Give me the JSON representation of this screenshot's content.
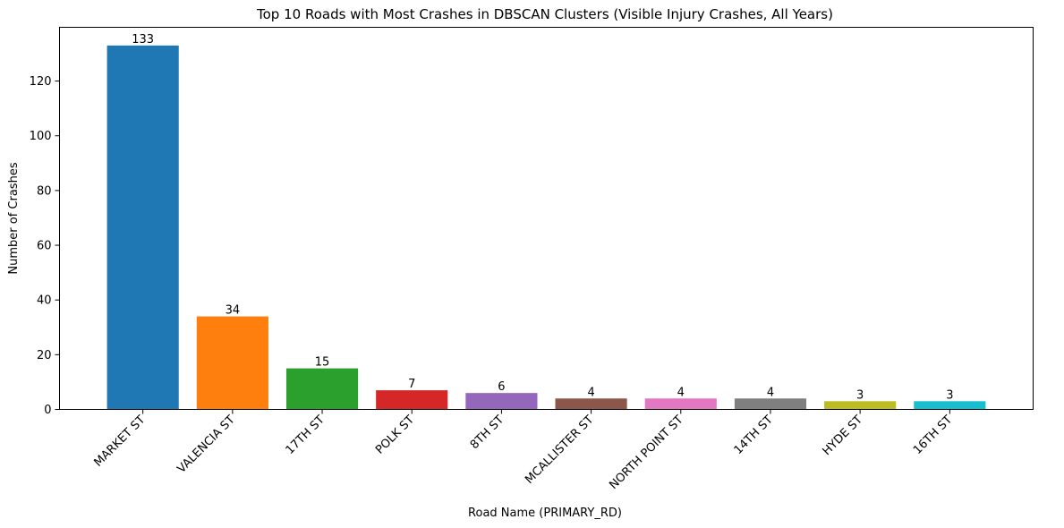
{
  "chart_data": {
    "type": "bar",
    "title": "Top 10 Roads with Most Crashes in DBSCAN Clusters (Visible Injury Crashes, All Years)",
    "xlabel": "Road Name (PRIMARY_RD)",
    "ylabel": "Number of Crashes",
    "categories": [
      "MARKET ST",
      "VALENCIA ST",
      "17TH ST",
      "POLK ST",
      "8TH ST",
      "MCALLISTER ST",
      "NORTH POINT ST",
      "14TH ST",
      "HYDE ST",
      "16TH ST"
    ],
    "values": [
      133,
      34,
      15,
      7,
      6,
      4,
      4,
      4,
      3,
      3
    ],
    "value_labels": [
      "133",
      "34",
      "15",
      "7",
      "6",
      "4",
      "4",
      "4",
      "3",
      "3"
    ],
    "colors": [
      "#1f77b4",
      "#ff7f0e",
      "#2ca02c",
      "#d62728",
      "#9467bd",
      "#8c564b",
      "#e377c2",
      "#7f7f7f",
      "#bcbd22",
      "#17becf"
    ],
    "ylim": [
      0,
      139.65
    ],
    "yticks": [
      0,
      20,
      40,
      60,
      80,
      100,
      120
    ],
    "ytick_labels": [
      "0",
      "20",
      "40",
      "60",
      "80",
      "100",
      "120"
    ],
    "grid": false,
    "legend": "none"
  }
}
